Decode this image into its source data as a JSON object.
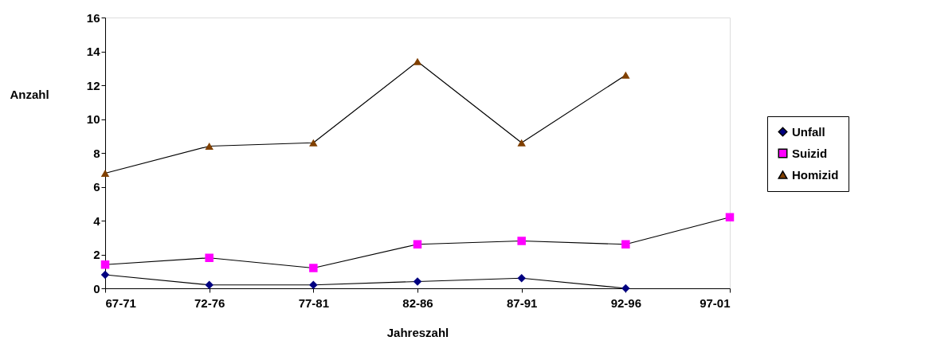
{
  "chart_data": {
    "type": "line",
    "xlabel": "Jahreszahl",
    "ylabel": "Anzahl",
    "categories": [
      "67-71",
      "72-76",
      "77-81",
      "82-86",
      "87-91",
      "92-96",
      "97-01"
    ],
    "series": [
      {
        "name": "Unfall",
        "color": "#000080",
        "marker": "diamond",
        "values": [
          0.8,
          0.2,
          0.2,
          0.4,
          0.6,
          0,
          null
        ]
      },
      {
        "name": "Suizid",
        "color": "#ff00ff",
        "marker": "square",
        "values": [
          1.4,
          1.8,
          1.2,
          2.6,
          2.8,
          2.6,
          4.2
        ]
      },
      {
        "name": "Homizid",
        "color": "#804000",
        "marker": "triangle",
        "values": [
          6.8,
          8.4,
          8.6,
          13.4,
          8.6,
          12.6,
          null
        ]
      }
    ],
    "ylim": [
      0,
      16
    ],
    "yticks": [
      0,
      2,
      4,
      6,
      8,
      10,
      12,
      14,
      16
    ],
    "grid": false,
    "legend": "right",
    "line_style": "solid"
  }
}
